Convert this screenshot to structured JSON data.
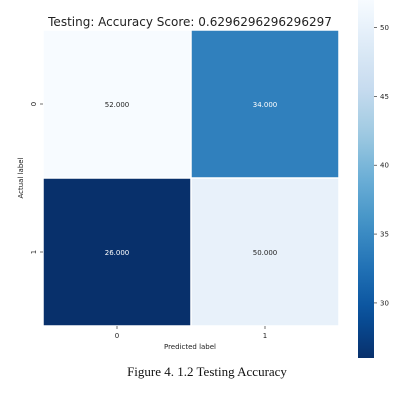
{
  "chart_data": {
    "type": "heatmap",
    "title": "Testing: Accuracy Score: 0.6296296296296297",
    "xlabel": "Predicted label",
    "ylabel": "Actual label",
    "x_categories": [
      "0",
      "1"
    ],
    "y_categories": [
      "0",
      "1"
    ],
    "values": [
      [
        52,
        34
      ],
      [
        26,
        50
      ]
    ],
    "cell_labels": [
      [
        "52.000",
        "34.000"
      ],
      [
        "26.000",
        "50.000"
      ]
    ],
    "colormap": "Blues",
    "colorbar": {
      "min": 26,
      "max": 52,
      "ticks": [
        30,
        35,
        40,
        45,
        50
      ],
      "tick_labels": [
        "30",
        "35",
        "40",
        "45",
        "50"
      ]
    }
  },
  "caption": "Figure 4. 1.2 Testing Accuracy"
}
